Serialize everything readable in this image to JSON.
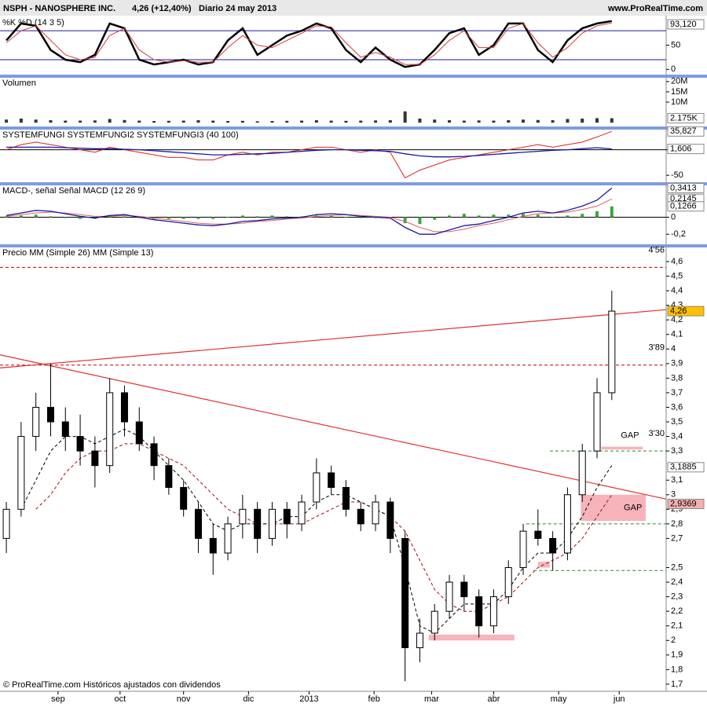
{
  "header": {
    "symbol": "NSPH - NANOSPHERE INC.",
    "quote": "4,26 (+12,40%)",
    "period": "Diario  24 may 2013",
    "site": "www.ProRealTime.com"
  },
  "footer": "© ProRealTime.com Históricos ajustados con dividendos",
  "chart_data": [
    {
      "type": "line",
      "title": [
        {
          "text": "%K",
          "color": "#000"
        },
        {
          "text": "%D (14 3 5)",
          "color": "#c00000"
        }
      ],
      "ylim": [
        -10.9,
        107.8
      ],
      "yticks": [
        50,
        0
      ],
      "levels": [
        20,
        80
      ],
      "level_color": "#1a1aa0",
      "tags": [
        {
          "value": 93.12,
          "label": "93,120",
          "color": "#ffffff"
        }
      ],
      "series": [
        {
          "type": "line",
          "color": "#000000",
          "width": 2.5,
          "values": [
            60,
            95,
            90,
            40,
            20,
            15,
            30,
            95,
            85,
            20,
            10,
            15,
            20,
            10,
            15,
            60,
            85,
            30,
            50,
            70,
            80,
            95,
            85,
            40,
            15,
            45,
            20,
            5,
            10,
            40,
            75,
            85,
            30,
            50,
            95,
            95,
            40,
            15,
            60,
            85,
            95,
            100
          ]
        },
        {
          "type": "line",
          "color": "#d04040",
          "width": 1,
          "values": [
            55,
            80,
            90,
            60,
            30,
            20,
            25,
            70,
            85,
            40,
            20,
            15,
            18,
            15,
            15,
            45,
            70,
            50,
            45,
            60,
            75,
            90,
            88,
            55,
            25,
            35,
            25,
            10,
            10,
            30,
            60,
            80,
            45,
            45,
            85,
            95,
            55,
            25,
            45,
            75,
            90,
            96
          ]
        }
      ]
    },
    {
      "type": "bar",
      "title": [
        {
          "text": "Volumen",
          "color": "#000"
        }
      ],
      "ylim": [
        -1.85,
        21.85
      ],
      "yticks": [
        {
          "value": 20,
          "label": "20M"
        },
        {
          "value": 15,
          "label": "15M"
        },
        {
          "value": 10,
          "label": "10M"
        }
      ],
      "tags": [
        {
          "value": 2.175,
          "label": "2.175K",
          "color": "#ffffff"
        }
      ],
      "series": [
        {
          "type": "bar",
          "color": "#333333",
          "values": [
            1.5,
            2,
            1.5,
            1.2,
            1,
            1,
            1.1,
            1.8,
            1.3,
            1,
            0.8,
            0.9,
            1,
            1.2,
            1,
            0.8,
            0.9,
            0.7,
            0.8,
            0.9,
            1,
            1.2,
            1,
            0.9,
            1,
            1.1,
            1.2,
            5.5,
            2,
            1.5,
            1.2,
            1,
            1.1,
            1,
            1.2,
            1.5,
            1.3,
            1.2,
            1.8,
            2,
            2.2,
            2.175
          ]
        }
      ]
    },
    {
      "type": "line",
      "title": [
        {
          "text": "SYSTEMFUNGI",
          "color": "#000"
        },
        {
          "text": "SYSTEMFUNGI2",
          "color": "#c00000"
        },
        {
          "text": "SYSTEMFUNGI3 (40 100)",
          "color": "#1a1aa0"
        }
      ],
      "ylim": [
        -63.6,
        39.4
      ],
      "yticks": [
        0,
        -50
      ],
      "levels": [
        0
      ],
      "level_color": "#000000",
      "tags": [
        {
          "value": 35.827,
          "label": "35,827",
          "color": "#ffffff"
        },
        {
          "value": 1.606,
          "label": "1,606",
          "color": "#ffffff"
        }
      ],
      "series": [
        {
          "type": "line",
          "color": "#e02020",
          "width": 1,
          "values": [
            0,
            10,
            15,
            10,
            5,
            0,
            -5,
            5,
            0,
            -5,
            -10,
            -15,
            -15,
            -20,
            -20,
            -10,
            -5,
            -10,
            -5,
            -5,
            0,
            5,
            5,
            0,
            -5,
            0,
            -5,
            -55,
            -40,
            -30,
            -20,
            -15,
            -10,
            -5,
            0,
            5,
            10,
            5,
            10,
            15,
            25,
            35.827
          ]
        },
        {
          "type": "line",
          "color": "#1a1aa0",
          "width": 1.3,
          "values": [
            5,
            5,
            5,
            5,
            4,
            3,
            2,
            2,
            1,
            0,
            -2,
            -4,
            -6,
            -8,
            -10,
            -10,
            -9,
            -8,
            -7,
            -5,
            -3,
            -1,
            0,
            0,
            -1,
            -2,
            -3,
            -8,
            -12,
            -14,
            -14,
            -13,
            -11,
            -9,
            -7,
            -5,
            -3,
            -1,
            0,
            2,
            4,
            1.606
          ]
        }
      ]
    },
    {
      "type": "line",
      "title": [
        {
          "text": "MACD-, señal",
          "color": "#2a9a2a"
        },
        {
          "text": "Señal",
          "color": "#c00000"
        },
        {
          "text": "MACD (12 26 9)",
          "color": "#1a1aa0"
        }
      ],
      "ylim": [
        -0.318,
        0.373
      ],
      "yticks": [
        0,
        {
          "value": -0.2,
          "label": "-0,2"
        }
      ],
      "levels": [
        0
      ],
      "level_color": "#000000",
      "tags": [
        {
          "value": 0.3413,
          "label": "0,3413",
          "color": "#ffffff"
        },
        {
          "value": 0.2145,
          "label": "0,2145",
          "color": "#ffffff"
        },
        {
          "value": 0.1266,
          "label": "0,1266",
          "color": "#ffffff"
        }
      ],
      "series": [
        {
          "type": "bar",
          "color": "#3aa83a",
          "values": [
            0.01,
            0.02,
            0.03,
            0.01,
            -0.01,
            -0.02,
            -0.02,
            0.01,
            0.01,
            -0.01,
            -0.02,
            -0.02,
            -0.02,
            -0.02,
            -0.02,
            0,
            0.02,
            0.01,
            0.02,
            0.01,
            0.01,
            0.02,
            0.02,
            0,
            -0.01,
            -0.01,
            -0.01,
            -0.07,
            -0.08,
            -0.03,
            0.02,
            0.04,
            0.02,
            0.03,
            0.03,
            0.04,
            0.03,
            0,
            0.02,
            0.04,
            0.07,
            0.1266
          ]
        },
        {
          "type": "line",
          "color": "#e06060",
          "width": 1,
          "values": [
            0.01,
            0.03,
            0.05,
            0.06,
            0.05,
            0.03,
            0.01,
            0.01,
            0.02,
            0.01,
            -0.01,
            -0.03,
            -0.05,
            -0.07,
            -0.08,
            -0.08,
            -0.07,
            -0.05,
            -0.04,
            -0.02,
            -0.01,
            0.01,
            0.02,
            0.03,
            0.02,
            0.01,
            0,
            -0.05,
            -0.12,
            -0.17,
            -0.17,
            -0.14,
            -0.1,
            -0.07,
            -0.03,
            0.01,
            0.04,
            0.05,
            0.06,
            0.09,
            0.13,
            0.2145
          ]
        },
        {
          "type": "line",
          "color": "#1a1aa0",
          "width": 1.3,
          "values": [
            0.02,
            0.05,
            0.08,
            0.07,
            0.04,
            0.01,
            -0.01,
            0.02,
            0.03,
            0,
            -0.03,
            -0.05,
            -0.07,
            -0.09,
            -0.1,
            -0.08,
            -0.05,
            -0.04,
            -0.02,
            -0.01,
            0,
            0.03,
            0.04,
            0.03,
            0.01,
            0,
            -0.01,
            -0.12,
            -0.2,
            -0.2,
            -0.15,
            -0.1,
            -0.08,
            -0.04,
            0,
            0.05,
            0.07,
            0.05,
            0.08,
            0.13,
            0.2,
            0.3413
          ]
        }
      ]
    },
    {
      "type": "candlestick",
      "title": [
        {
          "text": "Precio",
          "color": "#000"
        },
        {
          "text": "MM (Simple 26)",
          "color": "#c00000"
        },
        {
          "text": "MM (Simple 13)",
          "color": "#000"
        }
      ],
      "xlim": [
        -0.43,
        44.68
      ],
      "xticks": [
        {
          "value": 3.5,
          "label": "sep"
        },
        {
          "value": 7.7,
          "label": "oct"
        },
        {
          "value": 12.0,
          "label": "nov"
        },
        {
          "value": 16.4,
          "label": "dic"
        },
        {
          "value": 20.5,
          "label": "2013"
        },
        {
          "value": 24.9,
          "label": "feb"
        },
        {
          "value": 28.8,
          "label": "mar"
        },
        {
          "value": 33.0,
          "label": "abr"
        },
        {
          "value": 37.4,
          "label": "may"
        },
        {
          "value": 41.5,
          "label": "jun"
        }
      ],
      "ylim": [
        1.651,
        4.697
      ],
      "yticks": [
        {
          "value": 4.6,
          "label": "4,6"
        },
        {
          "value": 4.5,
          "label": "4,5"
        },
        {
          "value": 4.4,
          "label": "4,4"
        },
        {
          "value": 4.3,
          "label": "4,3"
        },
        {
          "value": 4.2,
          "label": "4,2"
        },
        {
          "value": 4.1,
          "label": "4,1"
        },
        4,
        {
          "value": 3.9,
          "label": "3,9"
        },
        {
          "value": 3.8,
          "label": "3,8"
        },
        {
          "value": 3.7,
          "label": "3,7"
        },
        {
          "value": 3.6,
          "label": "3,6"
        },
        {
          "value": 3.5,
          "label": "3,5"
        },
        {
          "value": 3.4,
          "label": "3,4"
        },
        {
          "value": 3.3,
          "label": "3,3"
        },
        {
          "value": 3.1,
          "label": "3,1"
        },
        3,
        {
          "value": 2.9,
          "label": "2,9"
        },
        {
          "value": 2.8,
          "label": "2,8"
        },
        {
          "value": 2.7,
          "label": "2,7"
        },
        {
          "value": 2.5,
          "label": "2,5"
        },
        {
          "value": 2.4,
          "label": "2,4"
        },
        {
          "value": 2.3,
          "label": "2,3"
        },
        {
          "value": 2.2,
          "label": "2,2"
        },
        {
          "value": 2.1,
          "label": "2,1"
        },
        2,
        {
          "value": 1.9,
          "label": "1,9"
        },
        {
          "value": 1.8,
          "label": "1,8"
        },
        {
          "value": 1.7,
          "label": "1,7"
        }
      ],
      "tags": [
        {
          "value": 4.26,
          "label": "4,26",
          "color": "#ffc000"
        },
        {
          "value": 3.1885,
          "label": "3,1885",
          "color": "#ffffff"
        },
        {
          "value": 2.9369,
          "label": "2,9369",
          "color": "#f4b0b0"
        }
      ],
      "ohlc": {
        "open": [
          2.7,
          2.9,
          3.4,
          3.6,
          3.5,
          3.4,
          3.3,
          3.2,
          3.7,
          3.5,
          3.35,
          3.2,
          3.05,
          2.9,
          2.7,
          2.6,
          2.8,
          2.9,
          2.7,
          2.9,
          2.8,
          2.95,
          3.15,
          3.05,
          2.9,
          2.8,
          2.95,
          2.7,
          1.95,
          2.05,
          2.2,
          2.4,
          2.3,
          2.1,
          2.3,
          2.5,
          2.75,
          2.7,
          2.6,
          3.0,
          3.3,
          3.7
        ],
        "high": [
          2.95,
          3.5,
          3.7,
          3.9,
          3.6,
          3.55,
          3.4,
          3.8,
          3.75,
          3.6,
          3.4,
          3.25,
          3.1,
          2.95,
          2.8,
          2.85,
          3.0,
          2.95,
          2.95,
          2.95,
          3.0,
          3.25,
          3.2,
          3.1,
          2.95,
          3.0,
          2.98,
          2.75,
          2.15,
          2.25,
          2.45,
          2.45,
          2.35,
          2.35,
          2.55,
          2.8,
          2.9,
          2.75,
          3.05,
          3.35,
          3.8,
          4.4
        ],
        "low": [
          2.6,
          2.85,
          3.3,
          3.4,
          3.3,
          3.2,
          3.05,
          3.15,
          3.4,
          3.3,
          3.1,
          3.0,
          2.85,
          2.6,
          2.45,
          2.55,
          2.7,
          2.6,
          2.65,
          2.7,
          2.75,
          2.9,
          3.0,
          2.85,
          2.75,
          2.75,
          2.6,
          1.72,
          1.85,
          2.0,
          2.15,
          2.2,
          2.02,
          2.05,
          2.25,
          2.45,
          2.65,
          2.48,
          2.55,
          2.95,
          3.25,
          3.65
        ],
        "close": [
          2.9,
          3.4,
          3.6,
          3.5,
          3.4,
          3.3,
          3.2,
          3.7,
          3.5,
          3.35,
          3.2,
          3.05,
          2.9,
          2.7,
          2.6,
          2.8,
          2.9,
          2.7,
          2.9,
          2.8,
          2.95,
          3.15,
          3.05,
          2.9,
          2.8,
          2.95,
          2.7,
          1.95,
          2.05,
          2.2,
          2.4,
          2.3,
          2.1,
          2.3,
          2.5,
          2.75,
          2.7,
          2.6,
          3.0,
          3.3,
          3.7,
          4.26
        ]
      },
      "series": [
        {
          "type": "line",
          "color": "#a01010",
          "width": 1,
          "dash": true,
          "values": [
            null,
            null,
            2.9,
            3.0,
            3.15,
            3.25,
            3.3,
            3.3,
            3.35,
            3.35,
            3.3,
            3.25,
            3.2,
            3.1,
            3.0,
            2.9,
            2.85,
            2.8,
            2.8,
            2.8,
            2.8,
            2.85,
            2.9,
            2.95,
            2.95,
            2.9,
            2.85,
            2.75,
            2.55,
            2.35,
            2.25,
            2.2,
            2.2,
            2.25,
            2.3,
            2.4,
            2.5,
            2.55,
            2.6,
            2.7,
            2.85,
            3.0
          ]
        },
        {
          "type": "line",
          "color": "#000000",
          "width": 1,
          "dash": true,
          "values": [
            null,
            2.9,
            3.1,
            3.3,
            3.4,
            3.4,
            3.35,
            3.4,
            3.45,
            3.4,
            3.3,
            3.2,
            3.1,
            2.95,
            2.8,
            2.75,
            2.8,
            2.8,
            2.8,
            2.85,
            2.85,
            2.95,
            3.0,
            3.0,
            2.95,
            2.9,
            2.85,
            2.5,
            2.1,
            2.05,
            2.15,
            2.25,
            2.25,
            2.25,
            2.35,
            2.5,
            2.6,
            2.6,
            2.7,
            2.85,
            3.05,
            3.2
          ]
        }
      ],
      "hlines": [
        {
          "value": 4.56,
          "label": "4'56",
          "color": "#c00000"
        },
        {
          "value": 3.89,
          "label": "3'89",
          "color": "#c00000"
        },
        {
          "value": 3.3,
          "label": "3'30",
          "color": "#2a8a2a",
          "from": 36.8
        },
        {
          "value": 2.8,
          "color": "#2a8a2a",
          "from": 35.2
        },
        {
          "value": 2.48,
          "color": "#2a8a2a",
          "from": 35.7
        }
      ],
      "trendlines": [
        {
          "x": [
            -0.43,
            44.68
          ],
          "y": [
            3.87,
            4.27
          ],
          "color": "#e03030"
        },
        {
          "x": [
            -0.43,
            44.68
          ],
          "y": [
            3.96,
            2.97
          ],
          "color": "#e03030"
        }
      ],
      "zones": [
        {
          "x": [
            28.6,
            34.4
          ],
          "y": [
            2.0,
            2.04
          ]
        },
        {
          "x": [
            36.0,
            36.8
          ],
          "y": [
            2.5,
            2.54
          ]
        },
        {
          "x": [
            38.9,
            43.3
          ],
          "y": [
            2.82,
            3.0
          ],
          "label": "GAP"
        },
        {
          "x": [
            40.3,
            43.1
          ],
          "y": [
            3.31,
            3.33
          ],
          "label": "GAP"
        }
      ]
    }
  ]
}
